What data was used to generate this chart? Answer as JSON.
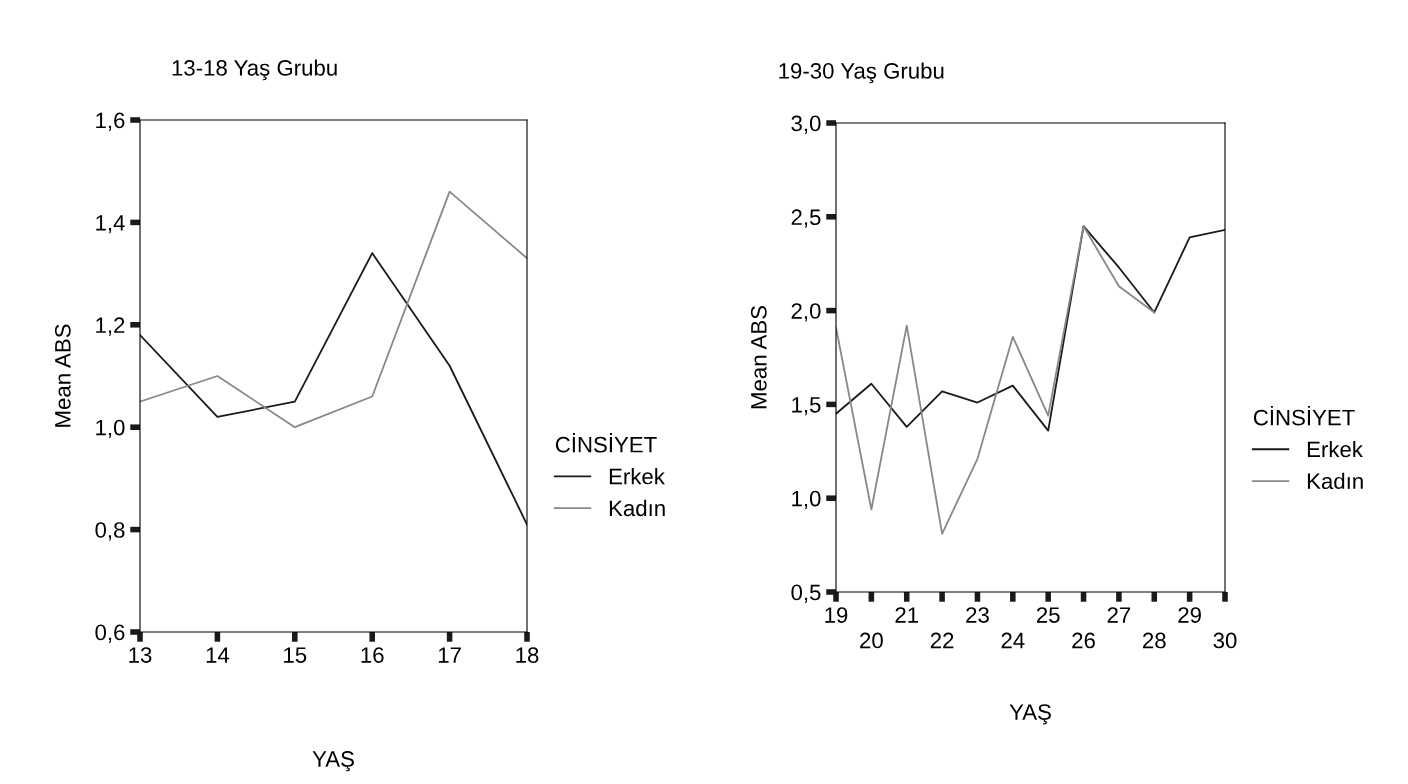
{
  "chart_data": [
    {
      "type": "line",
      "title": "13-18 Yaş Grubu",
      "xlabel": "YAŞ",
      "ylabel": "Mean ABS",
      "legend_title": "CİNSİYET",
      "legend": "right",
      "x": [
        13,
        14,
        15,
        16,
        17,
        18
      ],
      "xlim": [
        13,
        18
      ],
      "xticks": [
        13,
        14,
        15,
        16,
        17,
        18
      ],
      "ylim": [
        0.6,
        1.6
      ],
      "yticks": [
        {
          "value": 0.6,
          "label": "0,6"
        },
        {
          "value": 0.8,
          "label": "0,8"
        },
        {
          "value": 1.0,
          "label": "1,0"
        },
        {
          "value": 1.2,
          "label": "1,2"
        },
        {
          "value": 1.4,
          "label": "1,4"
        },
        {
          "value": 1.6,
          "label": "1,6"
        }
      ],
      "series": [
        {
          "name": "Erkek",
          "color": "#1a1a1a",
          "values": [
            1.18,
            1.02,
            1.05,
            1.34,
            1.12,
            0.81
          ]
        },
        {
          "name": "Kadın",
          "color": "#888888",
          "values": [
            1.05,
            1.1,
            1.0,
            1.06,
            1.46,
            1.33
          ]
        }
      ]
    },
    {
      "type": "line",
      "title": "19-30 Yaş Grubu",
      "xlabel": "YAŞ",
      "ylabel": "Mean ABS",
      "legend_title": "CİNSİYET",
      "legend": "right",
      "x": [
        19,
        20,
        21,
        22,
        23,
        24,
        25,
        26,
        27,
        28,
        29,
        30
      ],
      "xlim": [
        19,
        30
      ],
      "xticks": [
        19,
        {
          "value": 20,
          "label": null
        },
        21,
        {
          "value": 22,
          "label": null
        },
        23,
        {
          "value": 24,
          "label": null
        },
        25,
        {
          "value": 26,
          "label": null
        },
        27,
        {
          "value": 28,
          "label": null
        },
        29,
        {
          "value": 30,
          "label": null
        }
      ],
      "x2lim": [
        19,
        30
      ],
      "x2ticks": [
        20,
        22,
        24,
        26,
        28,
        30
      ],
      "ylim": [
        0.5,
        3.0
      ],
      "yticks": [
        {
          "value": 0.5,
          "label": "0,5"
        },
        {
          "value": 1.0,
          "label": "1,0"
        },
        {
          "value": 1.5,
          "label": "1,5"
        },
        {
          "value": 2.0,
          "label": "2,0"
        },
        {
          "value": 2.5,
          "label": "2,5"
        },
        {
          "value": 3.0,
          "label": "3,0"
        }
      ],
      "series": [
        {
          "name": "Erkek",
          "color": "#1a1a1a",
          "values": [
            1.45,
            1.61,
            1.38,
            1.57,
            1.51,
            1.6,
            1.36,
            2.45,
            2.23,
            1.99,
            2.39,
            2.43
          ]
        },
        {
          "name": "Kadın",
          "color": "#888888",
          "values": [
            1.91,
            0.94,
            1.92,
            0.81,
            1.21,
            1.86,
            1.44,
            2.45,
            2.13,
            1.99,
            null,
            null
          ]
        }
      ]
    }
  ]
}
